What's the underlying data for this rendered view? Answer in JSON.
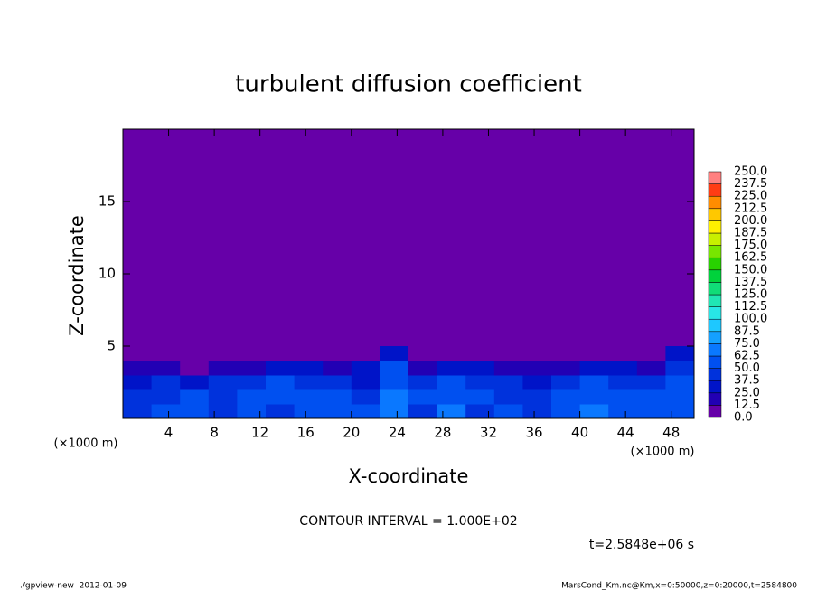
{
  "chart_data": {
    "type": "contour",
    "title": "turbulent diffusion coefficient",
    "x_label": "X-coordinate",
    "y_label": "Z-coordinate",
    "x_unit": "(×1000 m)",
    "contour_interval": "CONTOUR INTERVAL = 1.000E+02",
    "time_label": "t=2.5848e+06 s",
    "footer_left": "./gpview-new  2012-01-09",
    "footer_right": "MarsCond_Km.nc@Km,x=0:50000,z=0:20000,t=2584800",
    "xlim": [
      0,
      50
    ],
    "ylim": [
      0,
      20
    ],
    "xticks": [
      4,
      8,
      12,
      16,
      20,
      24,
      28,
      32,
      36,
      40,
      44,
      48
    ],
    "yticks": [
      5,
      10,
      15
    ],
    "x": [
      1.25,
      3.75,
      6.25,
      8.75,
      11.25,
      13.75,
      16.25,
      18.75,
      21.25,
      23.75,
      26.25,
      28.75,
      31.25,
      33.75,
      36.25,
      38.75,
      41.25,
      43.75,
      46.25,
      48.75
    ],
    "z": [
      0.5,
      1.5,
      2.5,
      3.5,
      4.5
    ],
    "values": [
      [
        45,
        50,
        55,
        40,
        50,
        45,
        60,
        55,
        50,
        70,
        45,
        65,
        45,
        50,
        45,
        55,
        70,
        60,
        55,
        50
      ],
      [
        40,
        45,
        50,
        45,
        55,
        50,
        55,
        50,
        45,
        65,
        50,
        55,
        50,
        45,
        40,
        50,
        60,
        55,
        50,
        55
      ],
      [
        35,
        40,
        35,
        40,
        45,
        50,
        45,
        40,
        35,
        60,
        45,
        50,
        45,
        40,
        35,
        45,
        50,
        45,
        40,
        50
      ],
      [
        20,
        15,
        10,
        15,
        20,
        35,
        25,
        20,
        25,
        50,
        20,
        30,
        25,
        15,
        20,
        15,
        35,
        30,
        20,
        40
      ],
      [
        0,
        0,
        0,
        0,
        0,
        0,
        0,
        0,
        10,
        35,
        0,
        0,
        0,
        0,
        0,
        0,
        0,
        0,
        0,
        25
      ]
    ],
    "levels": [
      {
        "value": 0,
        "label": "0.0"
      },
      {
        "value": 12.5,
        "label": "12.5"
      },
      {
        "value": 25,
        "label": "25.0"
      },
      {
        "value": 37.5,
        "label": "37.5"
      },
      {
        "value": 50,
        "label": "50.0"
      },
      {
        "value": 62.5,
        "label": "62.5"
      },
      {
        "value": 75,
        "label": "75.0"
      },
      {
        "value": 87.5,
        "label": "87.5"
      },
      {
        "value": 100,
        "label": "100.0"
      },
      {
        "value": 112.5,
        "label": "112.5"
      },
      {
        "value": 125,
        "label": "125.0"
      },
      {
        "value": 137.5,
        "label": "137.5"
      },
      {
        "value": 150,
        "label": "150.0"
      },
      {
        "value": 162.5,
        "label": "162.5"
      },
      {
        "value": 175,
        "label": "175.0"
      },
      {
        "value": 187.5,
        "label": "187.5"
      },
      {
        "value": 200,
        "label": "200.0"
      },
      {
        "value": 212.5,
        "label": "212.5"
      },
      {
        "value": 225,
        "label": "225.0"
      },
      {
        "value": 237.5,
        "label": "237.5"
      },
      {
        "value": 250,
        "label": "250.0"
      }
    ],
    "colors": [
      "#6600a8",
      "#2200b4",
      "#0014c8",
      "#0032dc",
      "#0050f0",
      "#0a78ff",
      "#14a0ff",
      "#1ec8ff",
      "#28e6e6",
      "#20e6b4",
      "#10dc78",
      "#00d23c",
      "#28d200",
      "#78e600",
      "#c8f000",
      "#fff000",
      "#ffc800",
      "#ff8c00",
      "#ff3c14",
      "#ff8080"
    ]
  }
}
